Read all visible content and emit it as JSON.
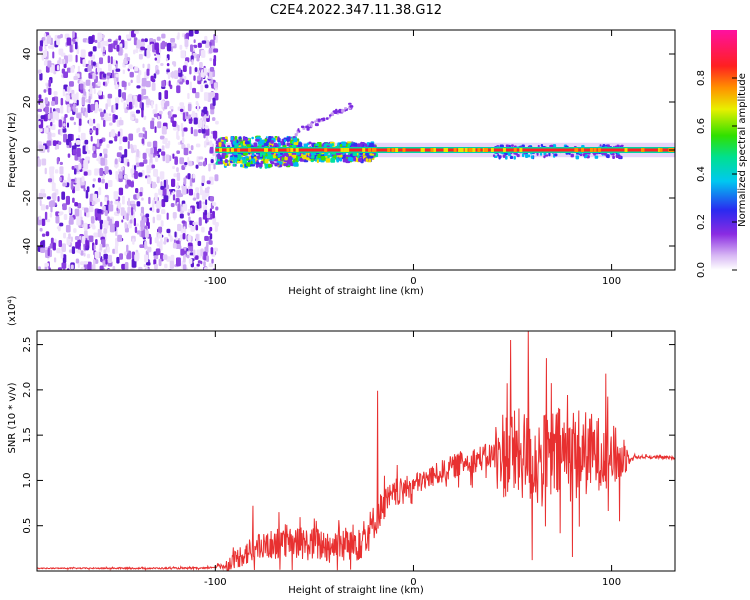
{
  "title": "C2E4.2022.347.11.38.G12",
  "colorbar": {
    "label": "Normalized spectral amplitude",
    "ticks": [
      "0.0",
      "0.2",
      "0.4",
      "0.6",
      "0.8"
    ],
    "range": [
      0,
      1
    ]
  },
  "chart_data": [
    {
      "type": "heatmap",
      "xlabel": "Height of straight line (km)",
      "ylabel": "Frequency (Hz)",
      "xlim": [
        -190,
        132
      ],
      "ylim": [
        -50,
        50
      ],
      "x_ticks": [
        -100,
        0,
        100
      ],
      "x_tick_labels": [
        "-100",
        "0",
        "100"
      ],
      "y_ticks": [
        -40,
        -20,
        0,
        20,
        40
      ],
      "y_tick_labels": [
        "-40",
        "-20",
        "0",
        "20",
        "40"
      ],
      "colormap": "rainbow (white at 0, purple, blue, cyan, green, yellow, red, magenta at 1)",
      "regions": [
        {
          "name": "broadband noise",
          "x_range": [
            -190,
            -100
          ],
          "freq_range": [
            -50,
            50
          ],
          "amplitude": 0.15
        },
        {
          "name": "carrier line",
          "x_range": [
            -100,
            132
          ],
          "freq_center": 0,
          "amplitude": 0.8
        },
        {
          "name": "scatter band",
          "x_range": [
            -100,
            -20
          ],
          "freq_range": [
            -6,
            6
          ],
          "amplitude": 0.3
        },
        {
          "name": "upper branch",
          "x_range": [
            -60,
            -30
          ],
          "freq_range": [
            8,
            20
          ],
          "amplitude": 0.2
        }
      ]
    },
    {
      "type": "line",
      "xlabel": "Height of straight line (km)",
      "ylabel": "SNR (10 * v/v)",
      "y_multiplier": "(x10⁴)",
      "xlim": [
        -190,
        132
      ],
      "ylim": [
        0,
        2.65
      ],
      "x_ticks": [
        -100,
        0,
        100
      ],
      "x_tick_labels": [
        "-100",
        "0",
        "100"
      ],
      "y_ticks": [
        0.5,
        1.0,
        1.5,
        2.0,
        2.5
      ],
      "y_tick_labels": [
        "0.5",
        "1.0",
        "1.5",
        "2.0",
        "2.5"
      ],
      "color": "#e83030",
      "trend": {
        "x": [
          -190,
          -105,
          -95,
          -85,
          -70,
          -55,
          -40,
          -30,
          -22,
          -15,
          -5,
          5,
          15,
          25,
          35,
          45,
          55,
          65,
          75,
          85,
          95,
          105,
          115,
          132
        ],
        "y": [
          0.03,
          0.03,
          0.06,
          0.2,
          0.3,
          0.3,
          0.28,
          0.3,
          0.45,
          0.75,
          0.9,
          1.0,
          1.1,
          1.2,
          1.25,
          1.3,
          1.28,
          1.2,
          1.3,
          1.3,
          1.3,
          1.25,
          1.26,
          1.25
        ]
      },
      "noise_amplitude": {
        "x": [
          -190,
          -100,
          -85,
          -40,
          -25,
          -20,
          0,
          40,
          45,
          80,
          105,
          110,
          132
        ],
        "y": [
          0.005,
          0.01,
          0.15,
          0.2,
          0.25,
          0.2,
          0.12,
          0.15,
          0.5,
          0.55,
          0.3,
          0.02,
          0.015
        ]
      },
      "spikes": [
        {
          "x": -81,
          "y": 0.72
        },
        {
          "x": -68,
          "y": 0.65
        },
        {
          "x": -50,
          "y": 0.58
        },
        {
          "x": -18,
          "y": 1.99
        },
        {
          "x": 49,
          "y": 2.55
        },
        {
          "x": 58,
          "y": 2.65
        },
        {
          "x": 60,
          "y": 0.12
        },
        {
          "x": 67,
          "y": 2.35
        },
        {
          "x": 97,
          "y": 2.18
        },
        {
          "x": 104,
          "y": 0.55
        }
      ]
    }
  ]
}
